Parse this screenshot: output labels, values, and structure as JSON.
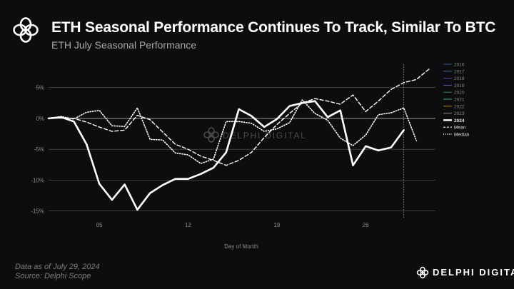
{
  "header": {
    "title": "ETH Seasonal Performance Continues To Track, Similar To BTC",
    "subtitle": "ETH July Seasonal Performance"
  },
  "footer": {
    "date_note": "Data as of July 29, 2024",
    "source_note": "Source: Delphi Scope",
    "brand": "DELPHI DIGITAL"
  },
  "watermark": "DELPHI DIGITAL",
  "colors": {
    "background": "#0d0d0f",
    "line": "#ffffff",
    "grid": "#5a5a5a",
    "muted_text": "#8a8a8a"
  },
  "chart_data": {
    "type": "line",
    "title": "ETH July Seasonal Performance",
    "xlabel": "Day of Month",
    "ylabel": "",
    "xlim": [
      1,
      31.5
    ],
    "ylim": [
      -15.5,
      8.2
    ],
    "x_ticks": [
      5,
      12,
      19,
      26
    ],
    "x_tick_labels": [
      "05",
      "12",
      "19",
      "26"
    ],
    "y_ticks": [
      5,
      0,
      -5,
      -10,
      -15
    ],
    "y_tick_labels": [
      "5%",
      "0%",
      "-5%",
      "-10%",
      "-15%"
    ],
    "marker_line_x": 29,
    "legend_position": "right",
    "legend": [
      "2016",
      "2017",
      "2018",
      "2019",
      "2020",
      "2021",
      "2022",
      "2023",
      "2024",
      "Mean",
      "Median"
    ],
    "legend_colors": [
      "#3b5998",
      "#4a6fa5",
      "#5b4aa5",
      "#6a4fc0",
      "#2e8b57",
      "#3cb371",
      "#b8860b",
      "#8a8a8a",
      "#ffffff",
      "#ffffff",
      "#ffffff"
    ],
    "series": [
      {
        "name": "2024",
        "style": "solid",
        "x": [
          1,
          2,
          3,
          4,
          5,
          6,
          7,
          8,
          9,
          10,
          11,
          12,
          13,
          14,
          15,
          16,
          17,
          18,
          19,
          20,
          21,
          22,
          23,
          24,
          25,
          26,
          27,
          28,
          29
        ],
        "values": [
          0,
          0.2,
          -0.5,
          -4.2,
          -10.6,
          -13.2,
          -10.7,
          -14.8,
          -12.1,
          -10.8,
          -9.8,
          -9.8,
          -9.0,
          -8.0,
          -5.5,
          1.5,
          0.4,
          -1.4,
          -0.1,
          2.0,
          2.5,
          2.8,
          0.2,
          1.3,
          -7.6,
          -4.5,
          -5.2,
          -4.7,
          -1.9
        ]
      },
      {
        "name": "Mean",
        "style": "dashed",
        "x": [
          1,
          2,
          3,
          4,
          5,
          6,
          7,
          8,
          9,
          10,
          11,
          12,
          13,
          14,
          15,
          16,
          17,
          18,
          19,
          20,
          21,
          22,
          23,
          24,
          25,
          26,
          27,
          28,
          29,
          30,
          31
        ],
        "values": [
          0,
          0.1,
          0,
          -0.6,
          -1.4,
          -2.1,
          -1.9,
          0.5,
          -0.2,
          -2.2,
          -4.2,
          -5.0,
          -6.1,
          -6.8,
          -7.6,
          -6.8,
          -5.5,
          -3.1,
          -1.0,
          0.8,
          2.5,
          3.2,
          2.8,
          2.3,
          3.8,
          1.1,
          2.8,
          4.7,
          5.8,
          6.3,
          8.0
        ]
      },
      {
        "name": "Median",
        "style": "dotted",
        "x": [
          1,
          2,
          3,
          4,
          5,
          6,
          7,
          8,
          9,
          10,
          11,
          12,
          13,
          14,
          15,
          16,
          17,
          18,
          19,
          20,
          21,
          22,
          23,
          24,
          25,
          26,
          27,
          28,
          29,
          30
        ],
        "values": [
          0,
          0.3,
          -0.1,
          1.0,
          1.3,
          -1.2,
          -1.3,
          1.7,
          -3.4,
          -3.5,
          -5.6,
          -5.9,
          -7.3,
          -6.6,
          -0.5,
          -0.5,
          -0.8,
          -2.1,
          -1.7,
          -0.7,
          3.0,
          0.8,
          -0.3,
          -3.2,
          -4.4,
          -2.7,
          0.6,
          0.9,
          1.7,
          -3.6
        ]
      }
    ]
  }
}
